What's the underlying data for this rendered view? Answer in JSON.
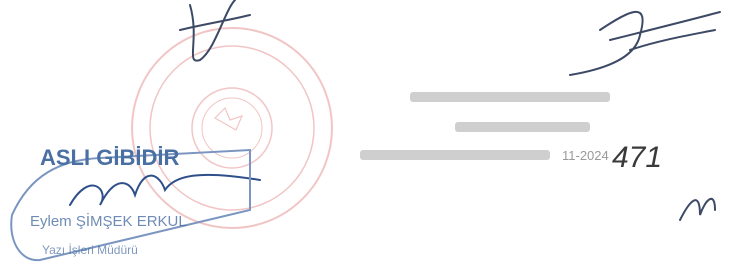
{
  "stamp": {
    "title": "ASLI GİBİDİR",
    "name": "Eylem ŞİMŞEK ERKUL",
    "role": "Yazı İşleri Müdürü"
  },
  "registry": {
    "number": "471",
    "date": "11-2024"
  }
}
